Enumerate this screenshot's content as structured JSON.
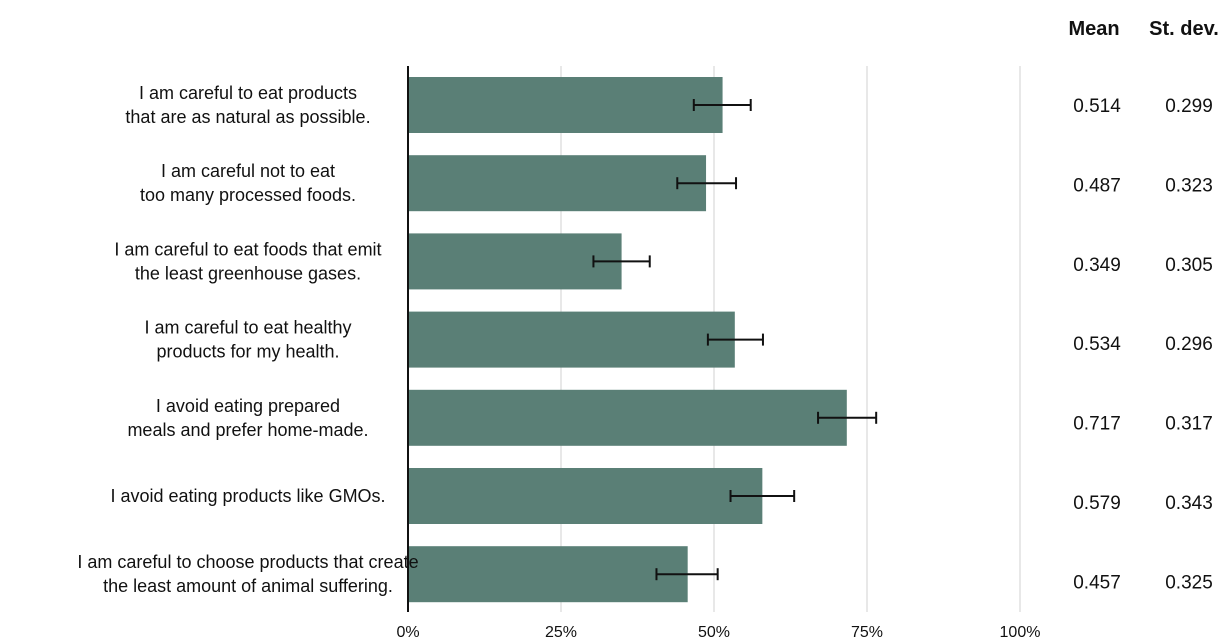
{
  "chart_data": {
    "type": "bar",
    "orientation": "horizontal",
    "categories": [
      [
        "I am careful to eat products",
        "that are as natural as possible."
      ],
      [
        "I am careful not to eat",
        "too many processed foods."
      ],
      [
        "I am careful to eat foods that emit",
        "the least greenhouse gases."
      ],
      [
        "I am careful to eat healthy",
        "products for my health."
      ],
      [
        "I avoid eating prepared",
        "meals and prefer home-made."
      ],
      [
        "I avoid eating products like GMOs."
      ],
      [
        "I am careful to choose products that create",
        "the least amount of animal suffering."
      ]
    ],
    "values": [
      0.514,
      0.487,
      0.349,
      0.534,
      0.717,
      0.579,
      0.457
    ],
    "error_low": [
      0.467,
      0.44,
      0.303,
      0.49,
      0.67,
      0.527,
      0.406
    ],
    "error_high": [
      0.56,
      0.536,
      0.395,
      0.58,
      0.765,
      0.631,
      0.506
    ],
    "xlim": [
      0,
      1
    ],
    "x_ticks": [
      0,
      0.25,
      0.5,
      0.75,
      1
    ],
    "x_tick_labels": [
      "0%",
      "25%",
      "50%",
      "75%",
      "100%"
    ],
    "grid": true,
    "bar_color": "#5a7f76",
    "table": {
      "headers": [
        "Mean",
        "St. dev."
      ],
      "mean": [
        "0.514",
        "0.487",
        "0.349",
        "0.534",
        "0.717",
        "0.579",
        "0.457"
      ],
      "stdev": [
        "0.299",
        "0.323",
        "0.305",
        "0.296",
        "0.317",
        "0.343",
        "0.325"
      ]
    }
  }
}
